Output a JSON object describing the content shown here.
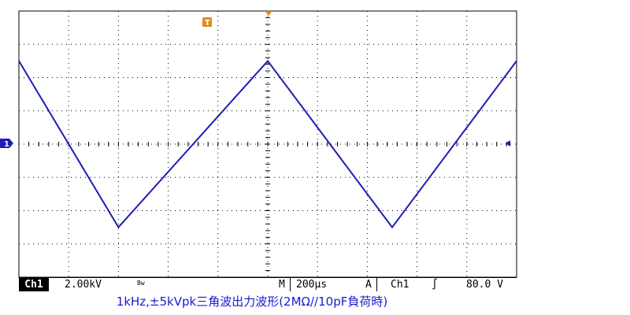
{
  "oscilloscope": {
    "channel_marker": "1",
    "trigger_marker": "T",
    "status": {
      "channel": "Ch1",
      "volts_per_div": "2.00kV",
      "bw_limit_glyph": "Bw",
      "timebase_label": "M",
      "time_per_div": "200µs",
      "acquire_label": "A",
      "trigger_source": "Ch1",
      "trigger_slope_glyph": "∫",
      "trigger_level": "80.0 V"
    }
  },
  "caption": "1kHz,±5kVpk三角波出力波形(2MΩ//10pF負荷時)",
  "colors": {
    "trace": "#1d1db8",
    "trigger_marker": "#e08a1a",
    "grid": "#000000"
  },
  "chart_data": {
    "type": "line",
    "title": "",
    "xlabel": "",
    "ylabel": "",
    "x_units": "µs",
    "y_units": "kV",
    "xlim": [
      0,
      2000
    ],
    "ylim": [
      -8,
      8
    ],
    "grid": true,
    "series": [
      {
        "x": [
          0,
          400,
          1000,
          1500,
          2000
        ],
        "y": [
          5,
          -5,
          5,
          -5,
          5
        ]
      }
    ]
  }
}
